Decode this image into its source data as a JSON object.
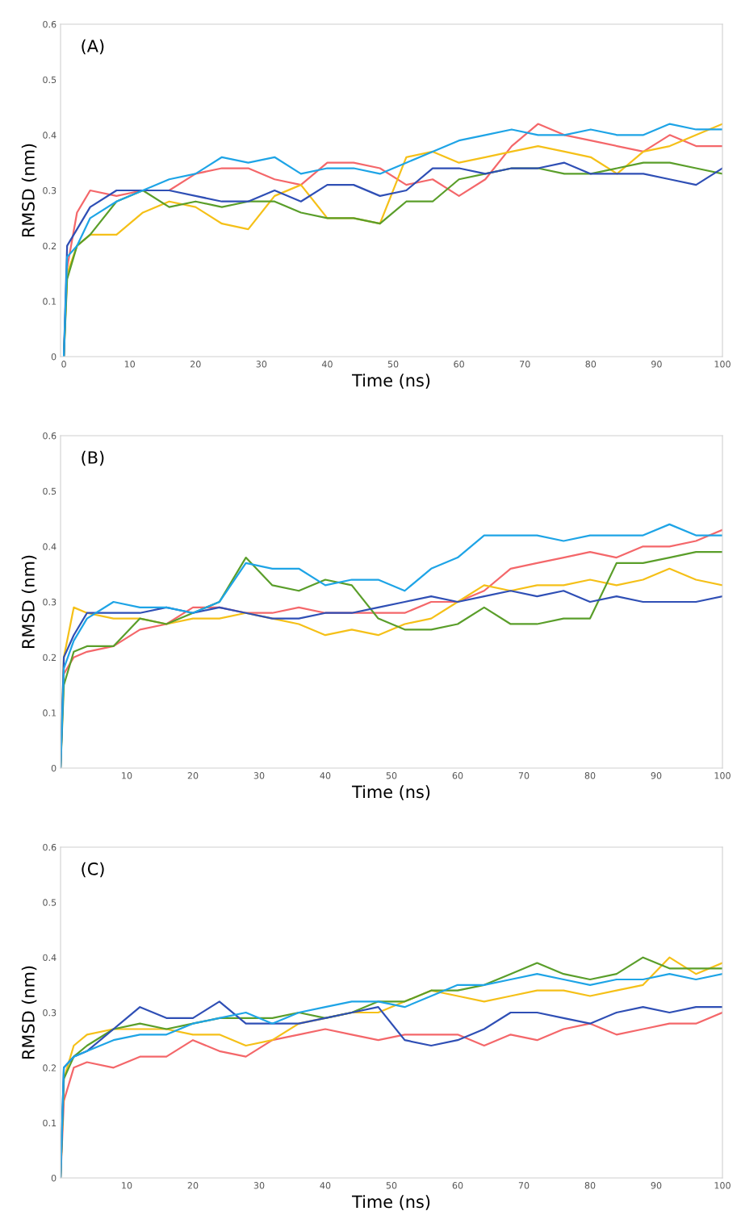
{
  "chart_data": [
    {
      "type": "line",
      "title": "(A)",
      "xlabel": "Time (ns)",
      "ylabel": "RMSD (nm)",
      "xlim": [
        -0.5,
        100
      ],
      "ylim": [
        0,
        0.6
      ],
      "xticks": [
        0,
        10,
        20,
        30,
        40,
        50,
        60,
        70,
        80,
        90,
        100
      ],
      "yticks": [
        0,
        0.1,
        0.2,
        0.3,
        0.4,
        0.5,
        0.6
      ],
      "grid": false,
      "x": [
        0,
        0.5,
        2,
        4,
        8,
        12,
        16,
        20,
        24,
        28,
        32,
        36,
        40,
        44,
        48,
        52,
        56,
        60,
        64,
        68,
        72,
        76,
        80,
        84,
        88,
        92,
        96,
        100
      ],
      "series": [
        {
          "color": "#f4676a",
          "values": [
            0,
            0.16,
            0.26,
            0.3,
            0.29,
            0.3,
            0.3,
            0.33,
            0.34,
            0.34,
            0.32,
            0.31,
            0.35,
            0.35,
            0.34,
            0.31,
            0.32,
            0.29,
            0.32,
            0.38,
            0.42,
            0.4,
            0.39,
            0.38,
            0.37,
            0.4,
            0.38,
            0.38
          ]
        },
        {
          "color": "#f5c018",
          "values": [
            0,
            0.15,
            0.2,
            0.22,
            0.22,
            0.26,
            0.28,
            0.27,
            0.24,
            0.23,
            0.29,
            0.31,
            0.25,
            0.25,
            0.24,
            0.36,
            0.37,
            0.35,
            0.36,
            0.37,
            0.38,
            0.37,
            0.36,
            0.33,
            0.37,
            0.38,
            0.4,
            0.42
          ]
        },
        {
          "color": "#5a9e2a",
          "values": [
            0,
            0.14,
            0.2,
            0.22,
            0.28,
            0.3,
            0.27,
            0.28,
            0.27,
            0.28,
            0.28,
            0.26,
            0.25,
            0.25,
            0.24,
            0.28,
            0.28,
            0.32,
            0.33,
            0.34,
            0.34,
            0.33,
            0.33,
            0.34,
            0.35,
            0.35,
            0.34,
            0.33
          ]
        },
        {
          "color": "#2f4fb5",
          "values": [
            0,
            0.2,
            0.23,
            0.27,
            0.3,
            0.3,
            0.3,
            0.29,
            0.28,
            0.28,
            0.3,
            0.28,
            0.31,
            0.31,
            0.29,
            0.3,
            0.34,
            0.34,
            0.33,
            0.34,
            0.34,
            0.35,
            0.33,
            0.33,
            0.33,
            0.32,
            0.31,
            0.34
          ]
        },
        {
          "color": "#1ea4e6",
          "values": [
            0,
            0.18,
            0.2,
            0.25,
            0.28,
            0.3,
            0.32,
            0.33,
            0.36,
            0.35,
            0.36,
            0.33,
            0.34,
            0.34,
            0.33,
            0.35,
            0.37,
            0.39,
            0.4,
            0.41,
            0.4,
            0.4,
            0.41,
            0.4,
            0.4,
            0.42,
            0.41,
            0.41
          ]
        }
      ]
    },
    {
      "type": "line",
      "title": "(B)",
      "xlabel": "Time (ns)",
      "ylabel": "RMSD (nm)",
      "xlim": [
        0,
        100
      ],
      "ylim": [
        0,
        0.6
      ],
      "xticks": [
        10,
        20,
        30,
        40,
        50,
        60,
        70,
        80,
        90,
        100
      ],
      "yticks": [
        0,
        0.1,
        0.2,
        0.3,
        0.4,
        0.5,
        0.6
      ],
      "grid": false,
      "x": [
        0,
        0.5,
        2,
        4,
        8,
        12,
        16,
        20,
        24,
        28,
        32,
        36,
        40,
        44,
        48,
        52,
        56,
        60,
        64,
        68,
        72,
        76,
        80,
        84,
        88,
        92,
        96,
        100
      ],
      "series": [
        {
          "color": "#f4676a",
          "values": [
            0,
            0.17,
            0.2,
            0.21,
            0.22,
            0.25,
            0.26,
            0.29,
            0.29,
            0.28,
            0.28,
            0.29,
            0.28,
            0.28,
            0.28,
            0.28,
            0.3,
            0.3,
            0.32,
            0.36,
            0.37,
            0.38,
            0.39,
            0.38,
            0.4,
            0.4,
            0.41,
            0.43
          ]
        },
        {
          "color": "#f5c018",
          "values": [
            0,
            0.2,
            0.29,
            0.28,
            0.27,
            0.27,
            0.26,
            0.27,
            0.27,
            0.28,
            0.27,
            0.26,
            0.24,
            0.25,
            0.24,
            0.26,
            0.27,
            0.3,
            0.33,
            0.32,
            0.33,
            0.33,
            0.34,
            0.33,
            0.34,
            0.36,
            0.34,
            0.33
          ]
        },
        {
          "color": "#5a9e2a",
          "values": [
            0,
            0.15,
            0.21,
            0.22,
            0.22,
            0.27,
            0.26,
            0.28,
            0.3,
            0.38,
            0.33,
            0.32,
            0.34,
            0.33,
            0.27,
            0.25,
            0.25,
            0.26,
            0.29,
            0.26,
            0.26,
            0.27,
            0.27,
            0.37,
            0.37,
            0.38,
            0.39,
            0.39
          ]
        },
        {
          "color": "#2f4fb5",
          "values": [
            0,
            0.2,
            0.24,
            0.28,
            0.28,
            0.28,
            0.29,
            0.28,
            0.29,
            0.28,
            0.27,
            0.27,
            0.28,
            0.28,
            0.29,
            0.3,
            0.31,
            0.3,
            0.31,
            0.32,
            0.31,
            0.32,
            0.3,
            0.31,
            0.3,
            0.3,
            0.3,
            0.31
          ]
        },
        {
          "color": "#1ea4e6",
          "values": [
            0,
            0.18,
            0.23,
            0.27,
            0.3,
            0.29,
            0.29,
            0.28,
            0.3,
            0.37,
            0.36,
            0.36,
            0.33,
            0.34,
            0.34,
            0.32,
            0.36,
            0.38,
            0.42,
            0.42,
            0.42,
            0.41,
            0.42,
            0.42,
            0.42,
            0.44,
            0.42,
            0.42
          ]
        }
      ]
    },
    {
      "type": "line",
      "title": "(C)",
      "xlabel": "Time (ns)",
      "ylabel": "RMSD (nm)",
      "xlim": [
        0,
        100
      ],
      "ylim": [
        0,
        0.6
      ],
      "xticks": [
        10,
        20,
        30,
        40,
        50,
        60,
        70,
        80,
        90,
        100
      ],
      "yticks": [
        0,
        0.1,
        0.2,
        0.3,
        0.4,
        0.5,
        0.6
      ],
      "grid": false,
      "x": [
        0,
        0.5,
        2,
        4,
        8,
        12,
        16,
        20,
        24,
        28,
        32,
        36,
        40,
        44,
        48,
        52,
        56,
        60,
        64,
        68,
        72,
        76,
        80,
        84,
        88,
        92,
        96,
        100
      ],
      "series": [
        {
          "color": "#f4676a",
          "values": [
            0,
            0.14,
            0.2,
            0.21,
            0.2,
            0.22,
            0.22,
            0.25,
            0.23,
            0.22,
            0.25,
            0.26,
            0.27,
            0.26,
            0.25,
            0.26,
            0.26,
            0.26,
            0.24,
            0.26,
            0.25,
            0.27,
            0.28,
            0.26,
            0.27,
            0.28,
            0.28,
            0.3
          ]
        },
        {
          "color": "#f5c018",
          "values": [
            0,
            0.18,
            0.24,
            0.26,
            0.27,
            0.27,
            0.27,
            0.26,
            0.26,
            0.24,
            0.25,
            0.28,
            0.29,
            0.3,
            0.3,
            0.32,
            0.34,
            0.33,
            0.32,
            0.33,
            0.34,
            0.34,
            0.33,
            0.34,
            0.35,
            0.4,
            0.37,
            0.39
          ]
        },
        {
          "color": "#5a9e2a",
          "values": [
            0,
            0.18,
            0.22,
            0.24,
            0.27,
            0.28,
            0.27,
            0.28,
            0.29,
            0.29,
            0.29,
            0.3,
            0.29,
            0.3,
            0.32,
            0.32,
            0.34,
            0.34,
            0.35,
            0.37,
            0.39,
            0.37,
            0.36,
            0.37,
            0.4,
            0.38,
            0.38,
            0.38
          ]
        },
        {
          "color": "#2f4fb5",
          "values": [
            0,
            0.2,
            0.22,
            0.23,
            0.27,
            0.31,
            0.29,
            0.29,
            0.32,
            0.28,
            0.28,
            0.28,
            0.29,
            0.3,
            0.31,
            0.25,
            0.24,
            0.25,
            0.27,
            0.3,
            0.3,
            0.29,
            0.28,
            0.3,
            0.31,
            0.3,
            0.31,
            0.31
          ]
        },
        {
          "color": "#1ea4e6",
          "values": [
            0,
            0.2,
            0.22,
            0.23,
            0.25,
            0.26,
            0.26,
            0.28,
            0.29,
            0.3,
            0.28,
            0.3,
            0.31,
            0.32,
            0.32,
            0.31,
            0.33,
            0.35,
            0.35,
            0.36,
            0.37,
            0.36,
            0.35,
            0.36,
            0.36,
            0.37,
            0.36,
            0.37
          ]
        }
      ]
    }
  ]
}
